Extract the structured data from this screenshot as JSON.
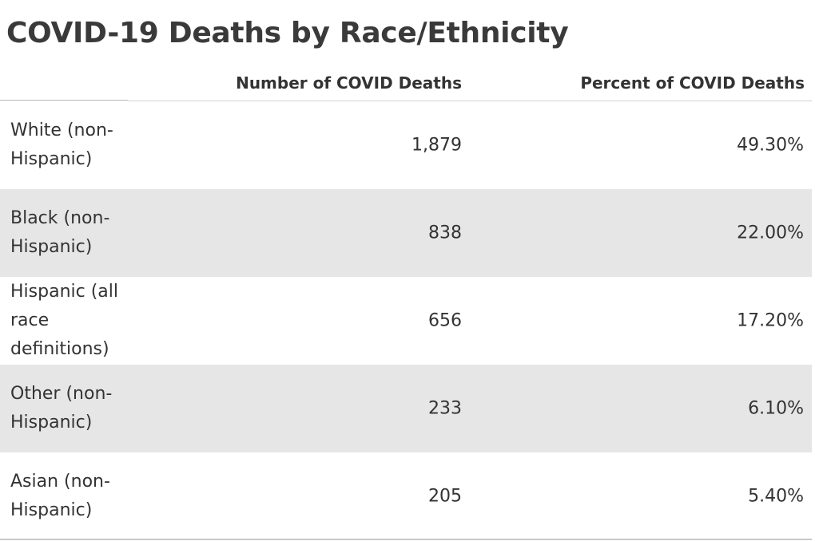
{
  "chart_data": {
    "type": "table",
    "title": "COVID-19 Deaths by Race/Ethnicity",
    "columns": [
      "",
      "Number of COVID Deaths",
      "Percent of COVID Deaths"
    ],
    "rows": [
      {
        "label": "White (non-Hispanic)",
        "deaths": "1,879",
        "percent": "49.30%"
      },
      {
        "label": "Black (non-Hispanic)",
        "deaths": "838",
        "percent": "22.00%"
      },
      {
        "label": "Hispanic (all race definitions)",
        "deaths": "656",
        "percent": "17.20%"
      },
      {
        "label": "Other (non-Hispanic)",
        "deaths": "233",
        "percent": "6.10%"
      },
      {
        "label": "Asian (non-Hispanic)",
        "deaths": "205",
        "percent": "5.40%"
      }
    ],
    "values": [
      1879,
      838,
      656,
      233,
      205
    ],
    "percents": [
      49.3,
      22.0,
      17.2,
      6.1,
      5.4
    ],
    "row_band_color": "#e6e6e6",
    "text_color": "#333333"
  }
}
